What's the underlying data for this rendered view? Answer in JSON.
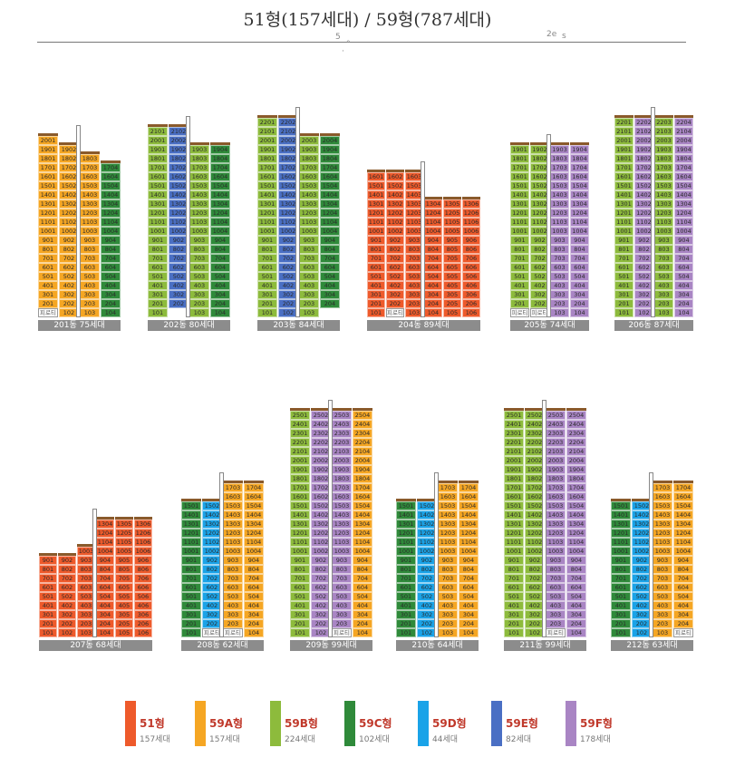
{
  "title": "51형(157세대) / 59형(787세대)",
  "scan_marks": [
    "5",
    "·",
    "°",
    "2e",
    "s"
  ],
  "colors": {
    "51": "#ee5a2b",
    "59A": "#f5a623",
    "59B": "#8dbb3c",
    "59C": "#2f8a3a",
    "59D": "#1aa3e8",
    "59E": "#4a6fc4",
    "59F": "#a985c4"
  },
  "pilotis_label": "피로티",
  "legend": [
    {
      "type": "51",
      "name": "51형",
      "count": "157세대"
    },
    {
      "type": "59A",
      "name": "59A형",
      "count": "157세대"
    },
    {
      "type": "59B",
      "name": "59B형",
      "count": "224세대"
    },
    {
      "type": "59C",
      "name": "59C형",
      "count": "102세대"
    },
    {
      "type": "59D",
      "name": "59D형",
      "count": "44세대"
    },
    {
      "type": "59E",
      "name": "59E형",
      "count": "82세대"
    },
    {
      "type": "59F",
      "name": "59F형",
      "count": "178세대"
    }
  ],
  "buildings": [
    {
      "label": "201동 75세대",
      "columns": [
        {
          "line": 1,
          "type": "59A",
          "top": 20,
          "first": 1,
          "pilotis": 1
        },
        {
          "line": 2,
          "type": "59A",
          "top": 19,
          "first": 1,
          "pilotis": 0
        },
        {
          "line": 3,
          "type": "59A",
          "top": 18,
          "first": 1,
          "pilotis": 0
        },
        {
          "line": 4,
          "type": "59C",
          "top": 17,
          "first": 1,
          "pilotis": 0
        }
      ]
    },
    {
      "label": "202동 80세대",
      "columns": [
        {
          "line": 1,
          "type": "59B",
          "top": 21,
          "first": 1,
          "pilotis": 0
        },
        {
          "line": 2,
          "type": "59E",
          "top": 21,
          "first": 2,
          "pilotis": 0
        },
        {
          "line": 3,
          "type": "59B",
          "top": 19,
          "first": 1,
          "pilotis": 0
        },
        {
          "line": 4,
          "type": "59C",
          "top": 19,
          "first": 1,
          "pilotis": 0
        }
      ]
    },
    {
      "label": "203동 84세대",
      "columns": [
        {
          "line": 1,
          "type": "59B",
          "top": 22,
          "first": 1,
          "pilotis": 0
        },
        {
          "line": 2,
          "type": "59E",
          "top": 22,
          "first": 1,
          "pilotis": 0
        },
        {
          "line": 3,
          "type": "59B",
          "top": 20,
          "first": 1,
          "pilotis": 0
        },
        {
          "line": 4,
          "type": "59C",
          "top": 20,
          "first": 2,
          "pilotis": 0
        }
      ]
    },
    {
      "label": "204동 89세대",
      "columns": [
        {
          "line": 1,
          "type": "51",
          "top": 16,
          "first": 1,
          "pilotis": 0
        },
        {
          "line": 2,
          "type": "51",
          "top": 16,
          "first": 1,
          "pilotis": 1
        },
        {
          "line": 3,
          "type": "51",
          "top": 16,
          "first": 1,
          "pilotis": 0
        },
        {
          "line": 4,
          "type": "51",
          "top": 13,
          "first": 1,
          "pilotis": 0
        },
        {
          "line": 5,
          "type": "51",
          "top": 13,
          "first": 1,
          "pilotis": 0
        },
        {
          "line": 6,
          "type": "51",
          "top": 13,
          "first": 1,
          "pilotis": 0
        }
      ]
    },
    {
      "label": "205동 74세대",
      "columns": [
        {
          "line": 1,
          "type": "59B",
          "top": 19,
          "first": 1,
          "pilotis": 1
        },
        {
          "line": 2,
          "type": "59B",
          "top": 19,
          "first": 1,
          "pilotis": 1
        },
        {
          "line": 3,
          "type": "59F",
          "top": 19,
          "first": 1,
          "pilotis": 0
        },
        {
          "line": 4,
          "type": "59F",
          "top": 19,
          "first": 1,
          "pilotis": 0
        }
      ]
    },
    {
      "label": "206동 87세대",
      "columns": [
        {
          "line": 1,
          "type": "59B",
          "top": 22,
          "first": 1,
          "pilotis": 0
        },
        {
          "line": 2,
          "type": "59F",
          "top": 22,
          "first": 1,
          "pilotis": 0
        },
        {
          "line": 3,
          "type": "59B",
          "top": 22,
          "first": 1,
          "pilotis": 0
        },
        {
          "line": 4,
          "type": "59F",
          "top": 22,
          "first": 1,
          "pilotis": 0
        }
      ]
    },
    {
      "label": "207동 68세대",
      "columns": [
        {
          "line": 1,
          "type": "51",
          "top": 9,
          "first": 1,
          "pilotis": 0
        },
        {
          "line": 2,
          "type": "51",
          "top": 9,
          "first": 1,
          "pilotis": 0
        },
        {
          "line": 3,
          "type": "51",
          "top": 10,
          "first": 1,
          "pilotis": 0
        },
        {
          "line": 4,
          "type": "51",
          "top": 13,
          "first": 1,
          "pilotis": 0
        },
        {
          "line": 5,
          "type": "51",
          "top": 13,
          "first": 1,
          "pilotis": 0
        },
        {
          "line": 6,
          "type": "51",
          "top": 13,
          "first": 1,
          "pilotis": 0
        }
      ]
    },
    {
      "label": "208동 62세대",
      "columns": [
        {
          "line": 1,
          "type": "59C",
          "top": 15,
          "first": 1,
          "pilotis": 0
        },
        {
          "line": 2,
          "type": "59D",
          "top": 15,
          "first": 2,
          "pilotis": 1
        },
        {
          "line": 3,
          "type": "59A",
          "top": 17,
          "first": 1,
          "pilotis": 1
        },
        {
          "line": 4,
          "type": "59A",
          "top": 17,
          "first": 1,
          "pilotis": 0
        }
      ]
    },
    {
      "label": "209동 99세대",
      "columns": [
        {
          "line": 1,
          "type": "59B",
          "top": 25,
          "first": 1,
          "pilotis": 0
        },
        {
          "line": 2,
          "type": "59F",
          "top": 25,
          "first": 1,
          "pilotis": 0
        },
        {
          "line": 3,
          "type": "59F",
          "top": 25,
          "first": 1,
          "pilotis": 1
        },
        {
          "line": 4,
          "type": "59A",
          "top": 25,
          "first": 1,
          "pilotis": 0
        }
      ]
    },
    {
      "label": "210동 64세대",
      "columns": [
        {
          "line": 1,
          "type": "59C",
          "top": 15,
          "first": 1,
          "pilotis": 0
        },
        {
          "line": 2,
          "type": "59D",
          "top": 15,
          "first": 1,
          "pilotis": 0
        },
        {
          "line": 3,
          "type": "59A",
          "top": 17,
          "first": 1,
          "pilotis": 0
        },
        {
          "line": 4,
          "type": "59A",
          "top": 17,
          "first": 1,
          "pilotis": 0
        }
      ]
    },
    {
      "label": "211동 99세대",
      "columns": [
        {
          "line": 1,
          "type": "59B",
          "top": 25,
          "first": 1,
          "pilotis": 0
        },
        {
          "line": 2,
          "type": "59B",
          "top": 25,
          "first": 1,
          "pilotis": 0
        },
        {
          "line": 3,
          "type": "59F",
          "top": 25,
          "first": 1,
          "pilotis": 1
        },
        {
          "line": 4,
          "type": "59F",
          "top": 25,
          "first": 1,
          "pilotis": 0
        }
      ]
    },
    {
      "label": "212동 63세대",
      "columns": [
        {
          "line": 1,
          "type": "59C",
          "top": 15,
          "first": 1,
          "pilotis": 0
        },
        {
          "line": 2,
          "type": "59D",
          "top": 15,
          "first": 1,
          "pilotis": 0
        },
        {
          "line": 3,
          "type": "59A",
          "top": 17,
          "first": 1,
          "pilotis": 0
        },
        {
          "line": 4,
          "type": "59A",
          "top": 17,
          "first": 1,
          "pilotis": 1
        }
      ]
    }
  ]
}
